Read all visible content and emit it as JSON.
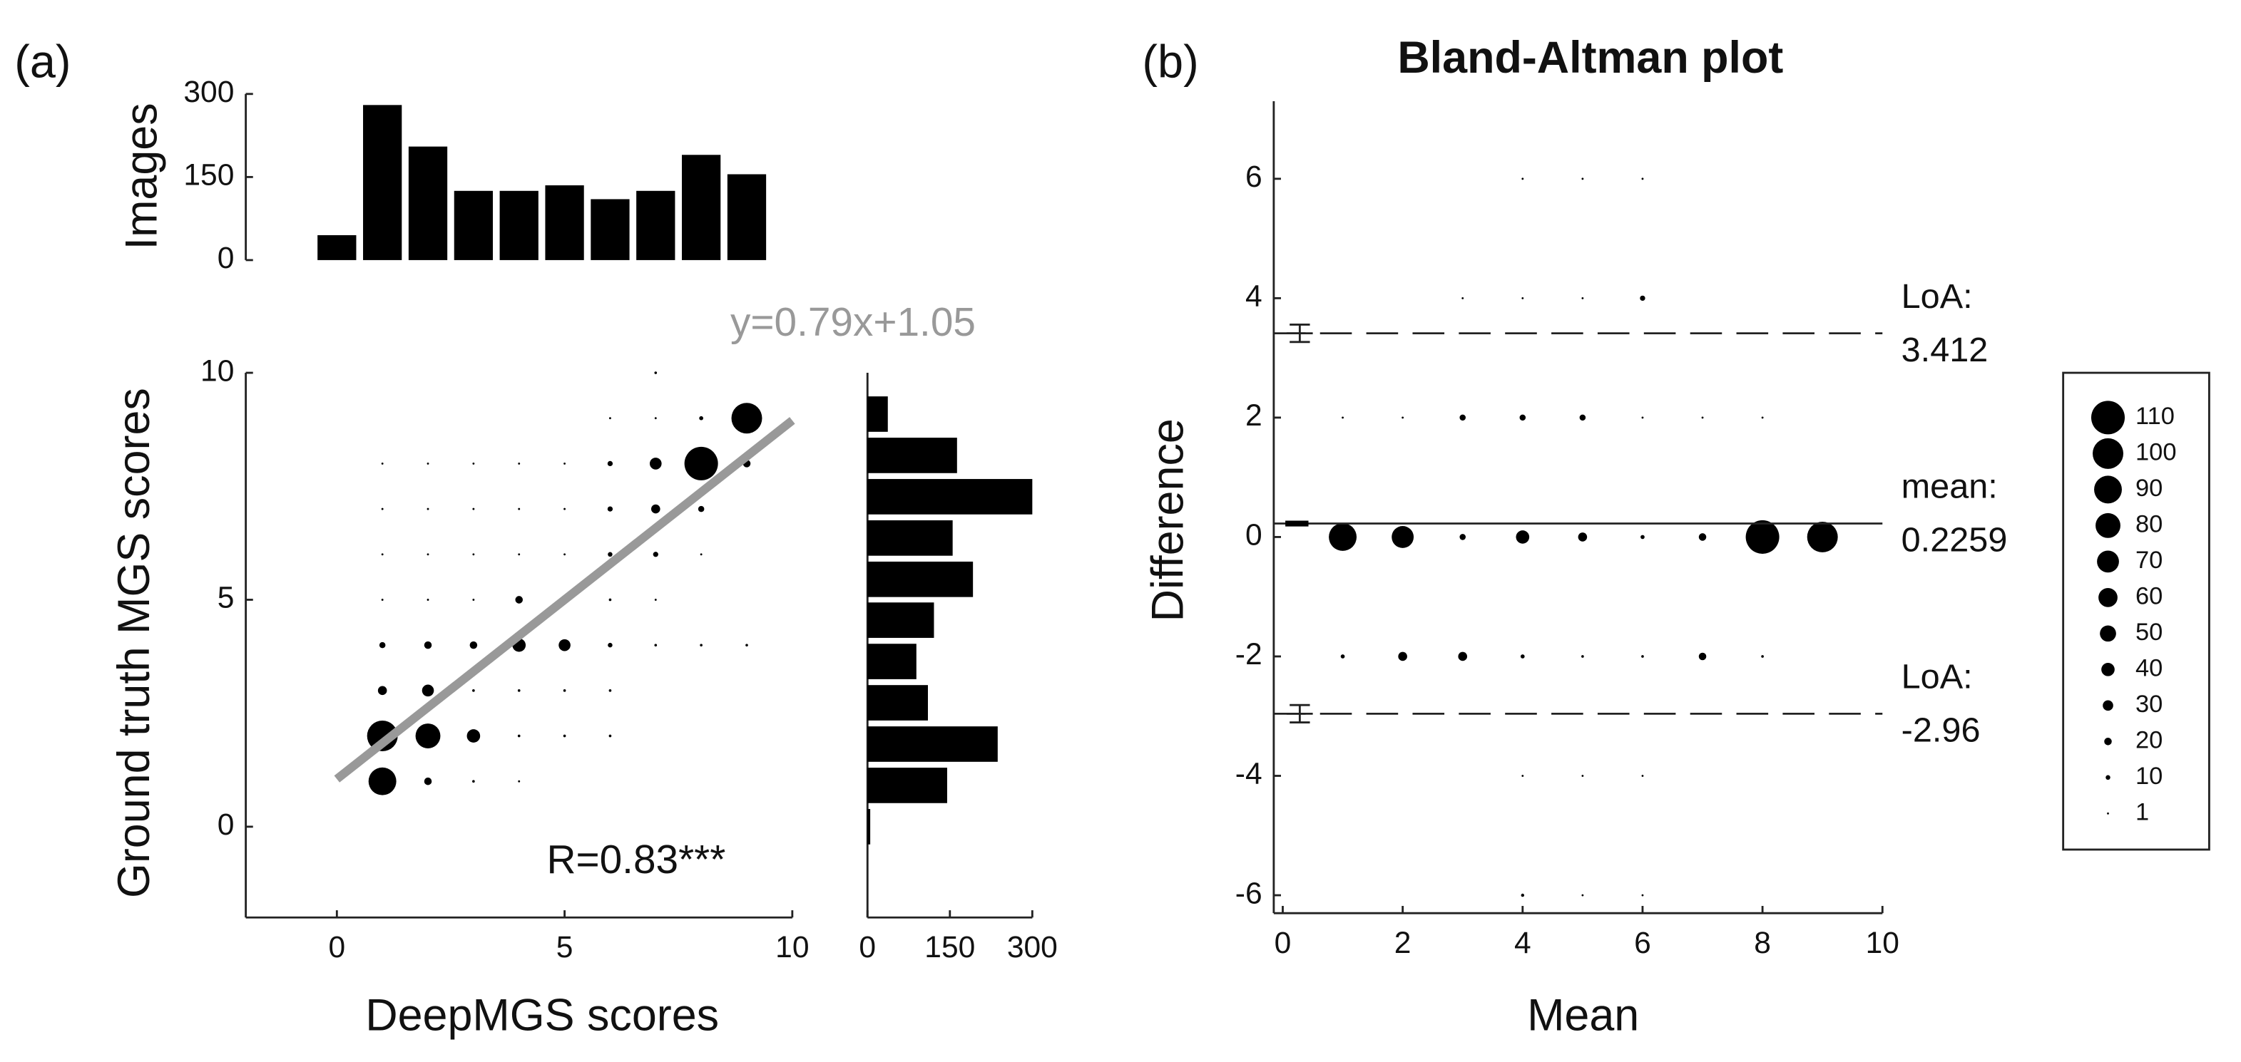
{
  "chart_data": [
    {
      "type": "bar",
      "panel_label": "(a)",
      "ylabel": "Images",
      "color": "#000000",
      "x": [
        0,
        1,
        2,
        3,
        4,
        5,
        6,
        7,
        8,
        9
      ],
      "values": [
        45,
        280,
        205,
        125,
        125,
        135,
        110,
        125,
        190,
        155
      ],
      "xlim": [
        -2,
        10
      ],
      "ylim": [
        0,
        300
      ],
      "yticks": [
        0,
        150,
        300
      ]
    },
    {
      "type": "scatter",
      "xlabel": "DeepMGS scores",
      "ylabel": "Ground truth MGS scores",
      "color": "#000000",
      "x": [
        7,
        6,
        7,
        8,
        9,
        1,
        2,
        3,
        4,
        5,
        6,
        7,
        8,
        9,
        1,
        2,
        3,
        4,
        5,
        6,
        7,
        8,
        1,
        2,
        3,
        4,
        5,
        6,
        7,
        8,
        1,
        2,
        3,
        4,
        5,
        6,
        7,
        1,
        2,
        3,
        4,
        5,
        6,
        7,
        8,
        9,
        1,
        2,
        3,
        4,
        5,
        6,
        1,
        2,
        3,
        4,
        5,
        6,
        1,
        2,
        3,
        4
      ],
      "y": [
        10,
        9,
        9,
        9,
        9,
        8,
        8,
        8,
        8,
        8,
        8,
        8,
        8,
        8,
        7,
        7,
        7,
        7,
        7,
        7,
        7,
        7,
        6,
        6,
        6,
        6,
        6,
        6,
        6,
        6,
        5,
        5,
        5,
        5,
        5,
        5,
        5,
        4,
        4,
        4,
        4,
        4,
        4,
        4,
        4,
        4,
        3,
        3,
        3,
        3,
        3,
        3,
        2,
        2,
        2,
        2,
        2,
        2,
        1,
        1,
        1,
        1
      ],
      "sizes": [
        3,
        1,
        1,
        8,
        100,
        1,
        1,
        1,
        1,
        1,
        12,
        35,
        110,
        20,
        1,
        1,
        1,
        1,
        1,
        12,
        25,
        15,
        1,
        1,
        1,
        1,
        1,
        10,
        12,
        1,
        1,
        1,
        1,
        20,
        1,
        3,
        1,
        15,
        20,
        20,
        40,
        35,
        10,
        3,
        3,
        3,
        25,
        35,
        3,
        3,
        3,
        3,
        100,
        80,
        40,
        3,
        3,
        3,
        90,
        20,
        3,
        1
      ],
      "fit": {
        "slope": 0.79,
        "intercept": 1.05,
        "label": "y=0.79x+1.05",
        "color": "#999999"
      },
      "annotation": "R=0.83***",
      "xlim": [
        -2,
        10
      ],
      "ylim": [
        -2,
        10
      ],
      "xticks": [
        0,
        5,
        10
      ],
      "yticks": [
        0,
        5,
        10
      ]
    },
    {
      "type": "hbar",
      "color": "#000000",
      "y": [
        0,
        0.91,
        1.82,
        2.73,
        3.64,
        4.55,
        5.45,
        6.36,
        7.27,
        8.18,
        9.09
      ],
      "values": [
        5,
        145,
        237,
        110,
        89,
        121,
        192,
        155,
        300,
        163,
        37
      ],
      "xlim": [
        0,
        300
      ],
      "xticks": [
        0,
        150,
        300
      ],
      "ylim": [
        -2,
        10
      ]
    },
    {
      "type": "bubble",
      "panel_label": "(b)",
      "title": "Bland-Altman plot",
      "xlabel": "Mean",
      "ylabel": "Difference",
      "color": "#000000",
      "x": [
        4,
        5,
        6,
        3,
        4,
        5,
        6,
        1,
        2,
        3,
        4,
        5,
        6,
        7,
        8,
        1,
        2,
        3,
        4,
        5,
        6,
        7,
        8,
        9,
        1,
        2,
        3,
        4,
        5,
        6,
        7,
        8,
        4,
        5,
        6,
        4,
        5,
        6
      ],
      "y": [
        6,
        6,
        6,
        4,
        4,
        4,
        4,
        2,
        2,
        2,
        2,
        2,
        2,
        2,
        2,
        0,
        0,
        0,
        0,
        0,
        0,
        0,
        0,
        0,
        -2,
        -2,
        -2,
        -2,
        -2,
        -2,
        -2,
        -2,
        -4,
        -4,
        -4,
        -6,
        -6,
        -6
      ],
      "sizes": [
        1,
        1,
        1,
        1,
        1,
        1,
        12,
        1,
        1,
        15,
        15,
        15,
        1,
        1,
        1,
        90,
        70,
        15,
        40,
        25,
        8,
        20,
        110,
        100,
        8,
        25,
        25,
        8,
        3,
        3,
        20,
        3,
        1,
        1,
        1,
        5,
        1,
        1
      ],
      "reference_lines": [
        {
          "name": "LoA:",
          "value": 3.412,
          "style": "dashed"
        },
        {
          "name": "mean:",
          "value": 0.2259,
          "style": "solid"
        },
        {
          "name": "LoA:",
          "value": -2.96,
          "style": "dashed"
        }
      ],
      "size_legend": [
        110,
        100,
        90,
        80,
        70,
        60,
        50,
        40,
        30,
        20,
        10,
        1
      ],
      "xlim": [
        -0.15,
        10
      ],
      "ylim": [
        -6.3,
        7.3
      ],
      "xticks": [
        0,
        2,
        4,
        6,
        8,
        10
      ],
      "yticks": [
        -6,
        -4,
        -2,
        0,
        2,
        4,
        6
      ]
    }
  ]
}
